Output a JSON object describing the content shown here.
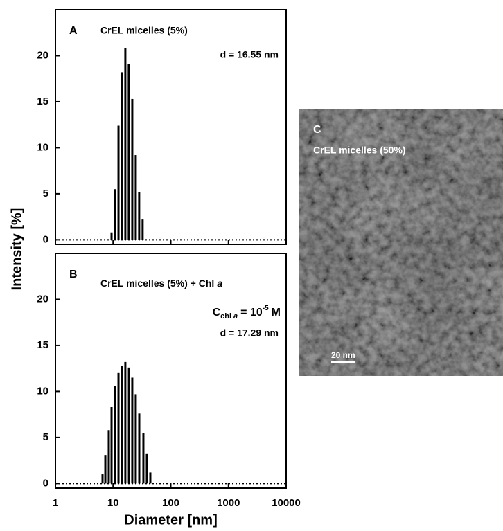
{
  "chart_data": [
    {
      "type": "bar",
      "panel": "A",
      "title": "CrEL micelles (5%)",
      "annotation": "d = 16.55 nm",
      "ylabel": "Intensity [%]",
      "x": [
        9.4,
        10.8,
        12.4,
        14.2,
        16.3,
        18.7,
        21.5,
        24.7,
        28.3,
        32.5
      ],
      "values": [
        0.8,
        5.5,
        12.4,
        18.2,
        20.8,
        19.1,
        15.3,
        9.2,
        5.2,
        2.2
      ],
      "color": "#000000",
      "xlim": [
        1,
        10000
      ],
      "xscale": "log",
      "ylim": [
        -0.5,
        25
      ],
      "yticks": [
        0,
        5,
        10,
        15,
        20
      ]
    },
    {
      "type": "bar",
      "panel": "B",
      "title": {
        "text": "CrEL micelles (5%) + Chl",
        "italic": "a"
      },
      "concentration": {
        "symbol": "C",
        "subscript": "chl",
        "subscript_italic": "a",
        "equals": "= 10",
        "exponent": "-5",
        "unit": "M"
      },
      "annotation": "d = 17.29 nm",
      "xlabel": "Diameter [nm]",
      "x": [
        6.56,
        7.33,
        8.41,
        9.4,
        10.8,
        12.4,
        14.2,
        16.3,
        18.8,
        21.5,
        24.7,
        28.4,
        33.5,
        38.5,
        44.2
      ],
      "values": [
        1.0,
        3.1,
        5.8,
        8.3,
        10.6,
        12.0,
        12.8,
        13.2,
        12.6,
        11.5,
        9.7,
        7.6,
        5.5,
        3.2,
        1.2
      ],
      "color": "#000000",
      "xlim": [
        1,
        10000
      ],
      "xscale": "log",
      "ylim": [
        -0.5,
        25
      ],
      "yticks": [
        0,
        5,
        10,
        15,
        20
      ],
      "xticks": [
        1,
        10,
        100,
        1000,
        10000
      ]
    }
  ],
  "image_panel": {
    "panel": "C",
    "title": "CrEL micelles (50%)",
    "scale_bar": "20 nm"
  }
}
